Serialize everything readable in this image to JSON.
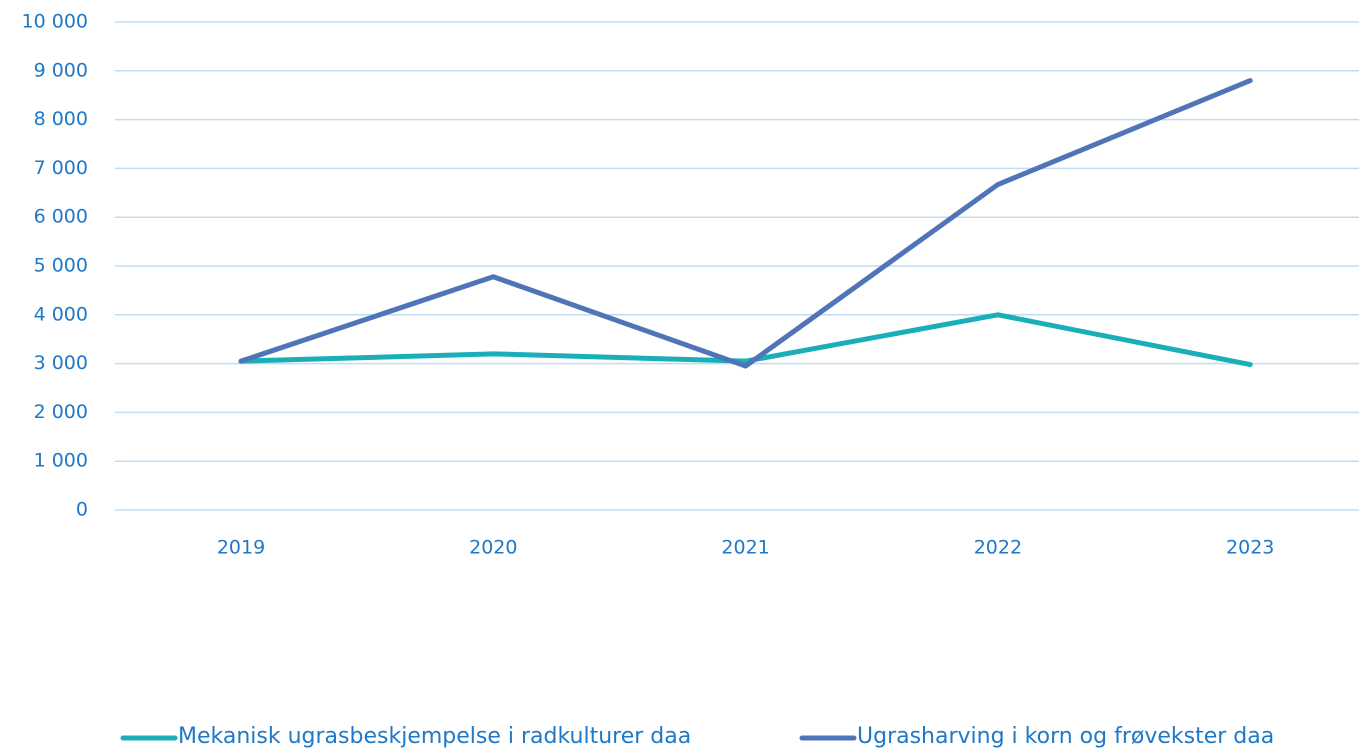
{
  "chart_data": {
    "type": "line",
    "categories": [
      "2019",
      "2020",
      "2021",
      "2022",
      "2023"
    ],
    "series": [
      {
        "name": "Mekanisk ugrasbeskjempelse i radkulturer daa",
        "color": "#1aaeb8",
        "values": [
          3050,
          3200,
          3050,
          4000,
          2980
        ]
      },
      {
        "name": "Ugrasharving i korn og frøvekster daa",
        "color": "#4f74b8",
        "values": [
          3050,
          4780,
          2950,
          6670,
          8800
        ]
      }
    ],
    "ylim": [
      0,
      10000
    ],
    "yticks": [
      0,
      {
        "value": 1000,
        "label": "1 000"
      },
      {
        "value": 2000,
        "label": "2 000"
      },
      {
        "value": 3000,
        "label": "3 000"
      },
      {
        "value": 4000,
        "label": "4 000"
      },
      {
        "value": 5000,
        "label": "5 000"
      },
      {
        "value": 6000,
        "label": "6 000"
      },
      {
        "value": 7000,
        "label": "7 000"
      },
      {
        "value": 8000,
        "label": "8 000"
      },
      {
        "value": 9000,
        "label": "9 000"
      },
      {
        "value": 10000,
        "label": "10 000"
      }
    ],
    "grid": true,
    "legend": "bottom"
  }
}
